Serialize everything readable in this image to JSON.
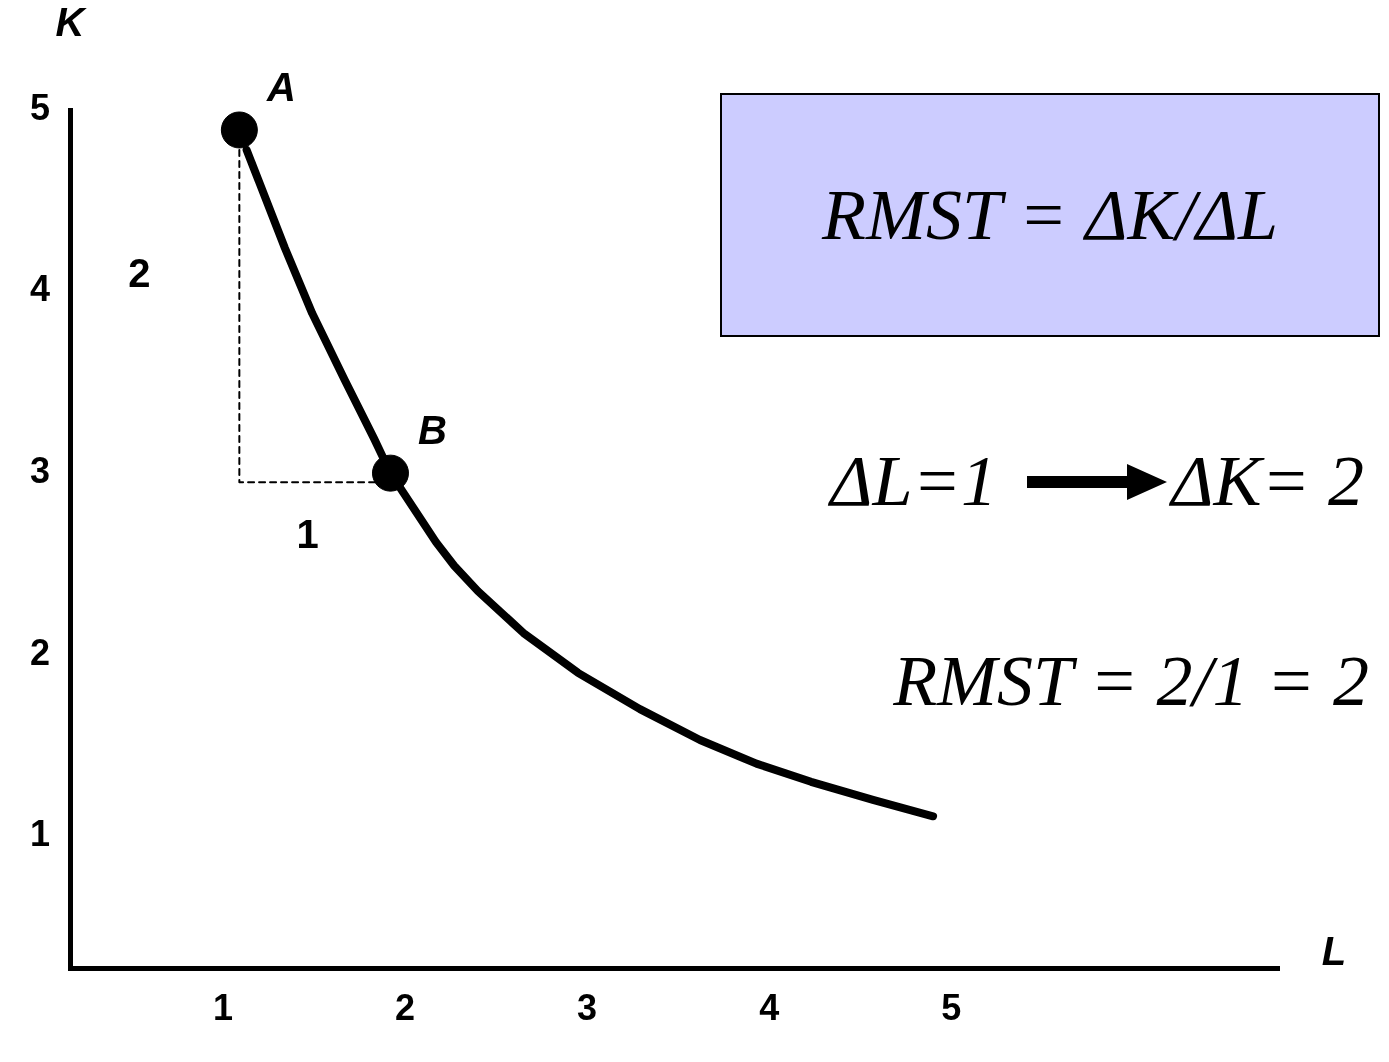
{
  "chart_data": {
    "type": "line",
    "xlabel": "L",
    "ylabel": "K",
    "xlim": [
      0.16,
      6.8
    ],
    "ylim": [
      0.27,
      5.0
    ],
    "xticks": [
      1,
      2,
      3,
      4,
      5
    ],
    "yticks": [
      1,
      2,
      3,
      4,
      5
    ],
    "grid": false,
    "legend": false,
    "series": [
      {
        "color": "#000000",
        "line_style": "solid",
        "marker": "none",
        "x": [
          1.13,
          1.34,
          1.49,
          1.67,
          1.83,
          1.92,
          2.17,
          2.27,
          2.4,
          2.65,
          2.95,
          3.29,
          3.62,
          3.93,
          4.23,
          4.57,
          4.9
        ],
        "values": [
          4.78,
          4.24,
          3.88,
          3.51,
          3.19,
          3.0,
          2.62,
          2.49,
          2.35,
          2.12,
          1.9,
          1.7,
          1.53,
          1.4,
          1.3,
          1.2,
          1.11
        ]
      },
      {
        "type": "line",
        "color": "#000000",
        "line_style": "dashed",
        "marker": "none",
        "x": [
          1.09,
          1.09,
          1.84
        ],
        "values": [
          4.78,
          2.95,
          2.95
        ]
      },
      {
        "type": "scatter",
        "color": "#000000",
        "marker": "circle",
        "x": [
          1.09,
          1.92
        ],
        "values": [
          4.89,
          3.0
        ]
      }
    ],
    "annotations": [
      "RMST =   ΔK/ΔL",
      "ΔL=1",
      "ΔK= 2",
      "RMST = 2/1 = 2",
      {
        "text": "A",
        "x": 1.09,
        "y": 4.89
      },
      {
        "text": "B",
        "x": 1.92,
        "y": 3.0
      },
      "2",
      "1"
    ]
  }
}
